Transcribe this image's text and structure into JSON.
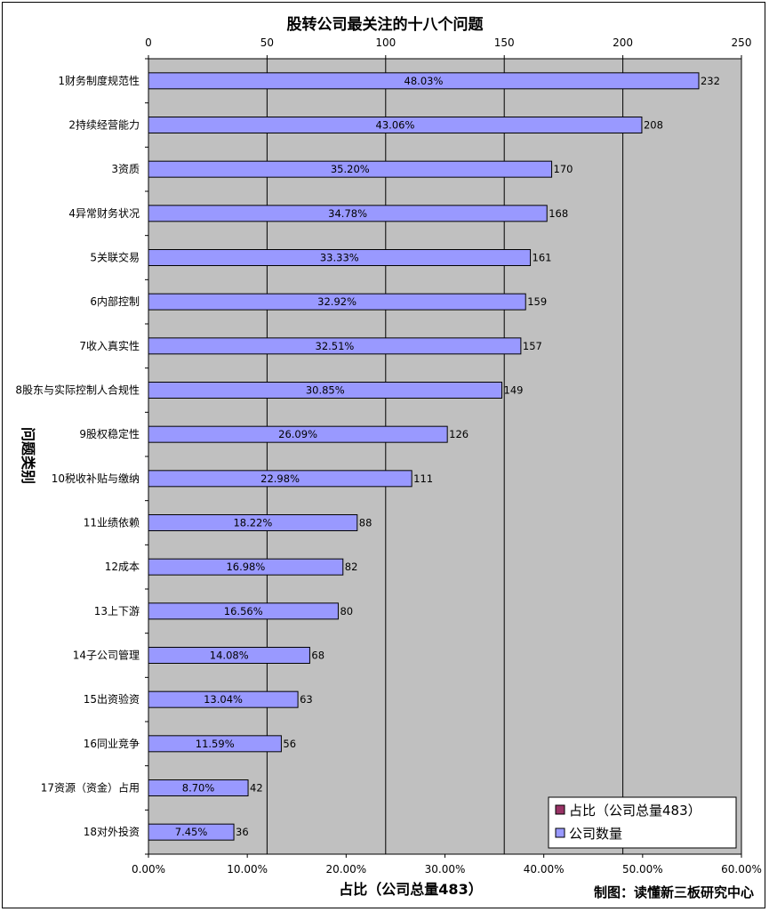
{
  "chart_data": {
    "type": "bar",
    "orientation": "horizontal",
    "title": "股转公司最关注的十八个问题",
    "ylabel": "问题类别",
    "xlabel_bottom": "占比（公司总量483）",
    "xlim_top": [
      0,
      250
    ],
    "xlim_bottom": [
      0,
      0.6
    ],
    "top_ticks": [
      "0",
      "50",
      "100",
      "150",
      "200",
      "250"
    ],
    "bottom_ticks": [
      "0.00%",
      "10.00%",
      "20.00%",
      "30.00%",
      "40.00%",
      "50.00%",
      "60.00%"
    ],
    "categories": [
      "1财务制度规范性",
      "2持续经营能力",
      "3资质",
      "4异常财务状况",
      "5关联交易",
      "6内部控制",
      "7收入真实性",
      "8股东与实际控制人合规性",
      "9股权稳定性",
      "10税收补贴与缴纳",
      "11业绩依赖",
      "12成本",
      "13上下游",
      "14子公司管理",
      "15出资验资",
      "16同业竞争",
      "17资源（资金）占用",
      "18对外投资"
    ],
    "series": [
      {
        "name": "公司数量",
        "color": "#9999ff",
        "values": [
          232,
          208,
          170,
          168,
          161,
          159,
          157,
          149,
          126,
          111,
          88,
          82,
          80,
          68,
          63,
          56,
          42,
          36
        ]
      },
      {
        "name": "占比（公司总量483）",
        "color": "#993366",
        "values": [
          0.4803,
          0.4306,
          0.352,
          0.3478,
          0.3333,
          0.3292,
          0.3251,
          0.3085,
          0.2609,
          0.2298,
          0.1822,
          0.1698,
          0.1656,
          0.1408,
          0.1304,
          0.1159,
          0.087,
          0.0745
        ]
      }
    ],
    "pct_labels": [
      "48.03%",
      "43.06%",
      "35.20%",
      "34.78%",
      "33.33%",
      "32.92%",
      "32.51%",
      "30.85%",
      "26.09%",
      "22.98%",
      "18.22%",
      "16.98%",
      "16.56%",
      "14.08%",
      "13.04%",
      "11.59%",
      "8.70%",
      "7.45%"
    ],
    "legend": [
      "占比（公司总量483）",
      "公司数量"
    ],
    "legend_position": "bottom-right",
    "credit": "制图：读懂新三板研究中心"
  },
  "colors": {
    "plot_bg": "#c0c0c0",
    "bar": "#9999ff",
    "pct_series": "#993366"
  }
}
